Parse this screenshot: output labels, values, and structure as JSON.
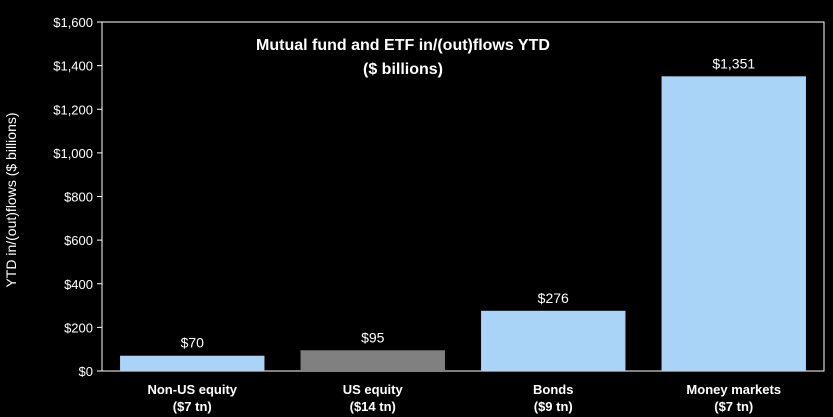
{
  "chart_data": {
    "type": "bar",
    "title": "Mutual fund and ETF in/(out)flows YTD",
    "subtitle": "($ billions)",
    "xlabel": "",
    "ylabel": "YTD in/(out)flows ($ billions)",
    "ylim": [
      0,
      1600
    ],
    "yticks": [
      "$0",
      "$200",
      "$400",
      "$600",
      "$800",
      "$1,000",
      "$1,200",
      "$1,400",
      "$1,600"
    ],
    "categories": [
      {
        "name": "Non-US equity",
        "sub": "($7 tn)"
      },
      {
        "name": "US equity",
        "sub": "($14 tn)"
      },
      {
        "name": "Bonds",
        "sub": "($9 tn)"
      },
      {
        "name": "Money markets",
        "sub": "($7 tn)"
      }
    ],
    "values": [
      70,
      95,
      276,
      1351
    ],
    "value_labels": [
      "$70",
      "$95",
      "$276",
      "$1,351"
    ],
    "colors": [
      "#a9d4f7",
      "#808080",
      "#a9d4f7",
      "#a9d4f7"
    ],
    "grid": false,
    "legend": "none"
  }
}
